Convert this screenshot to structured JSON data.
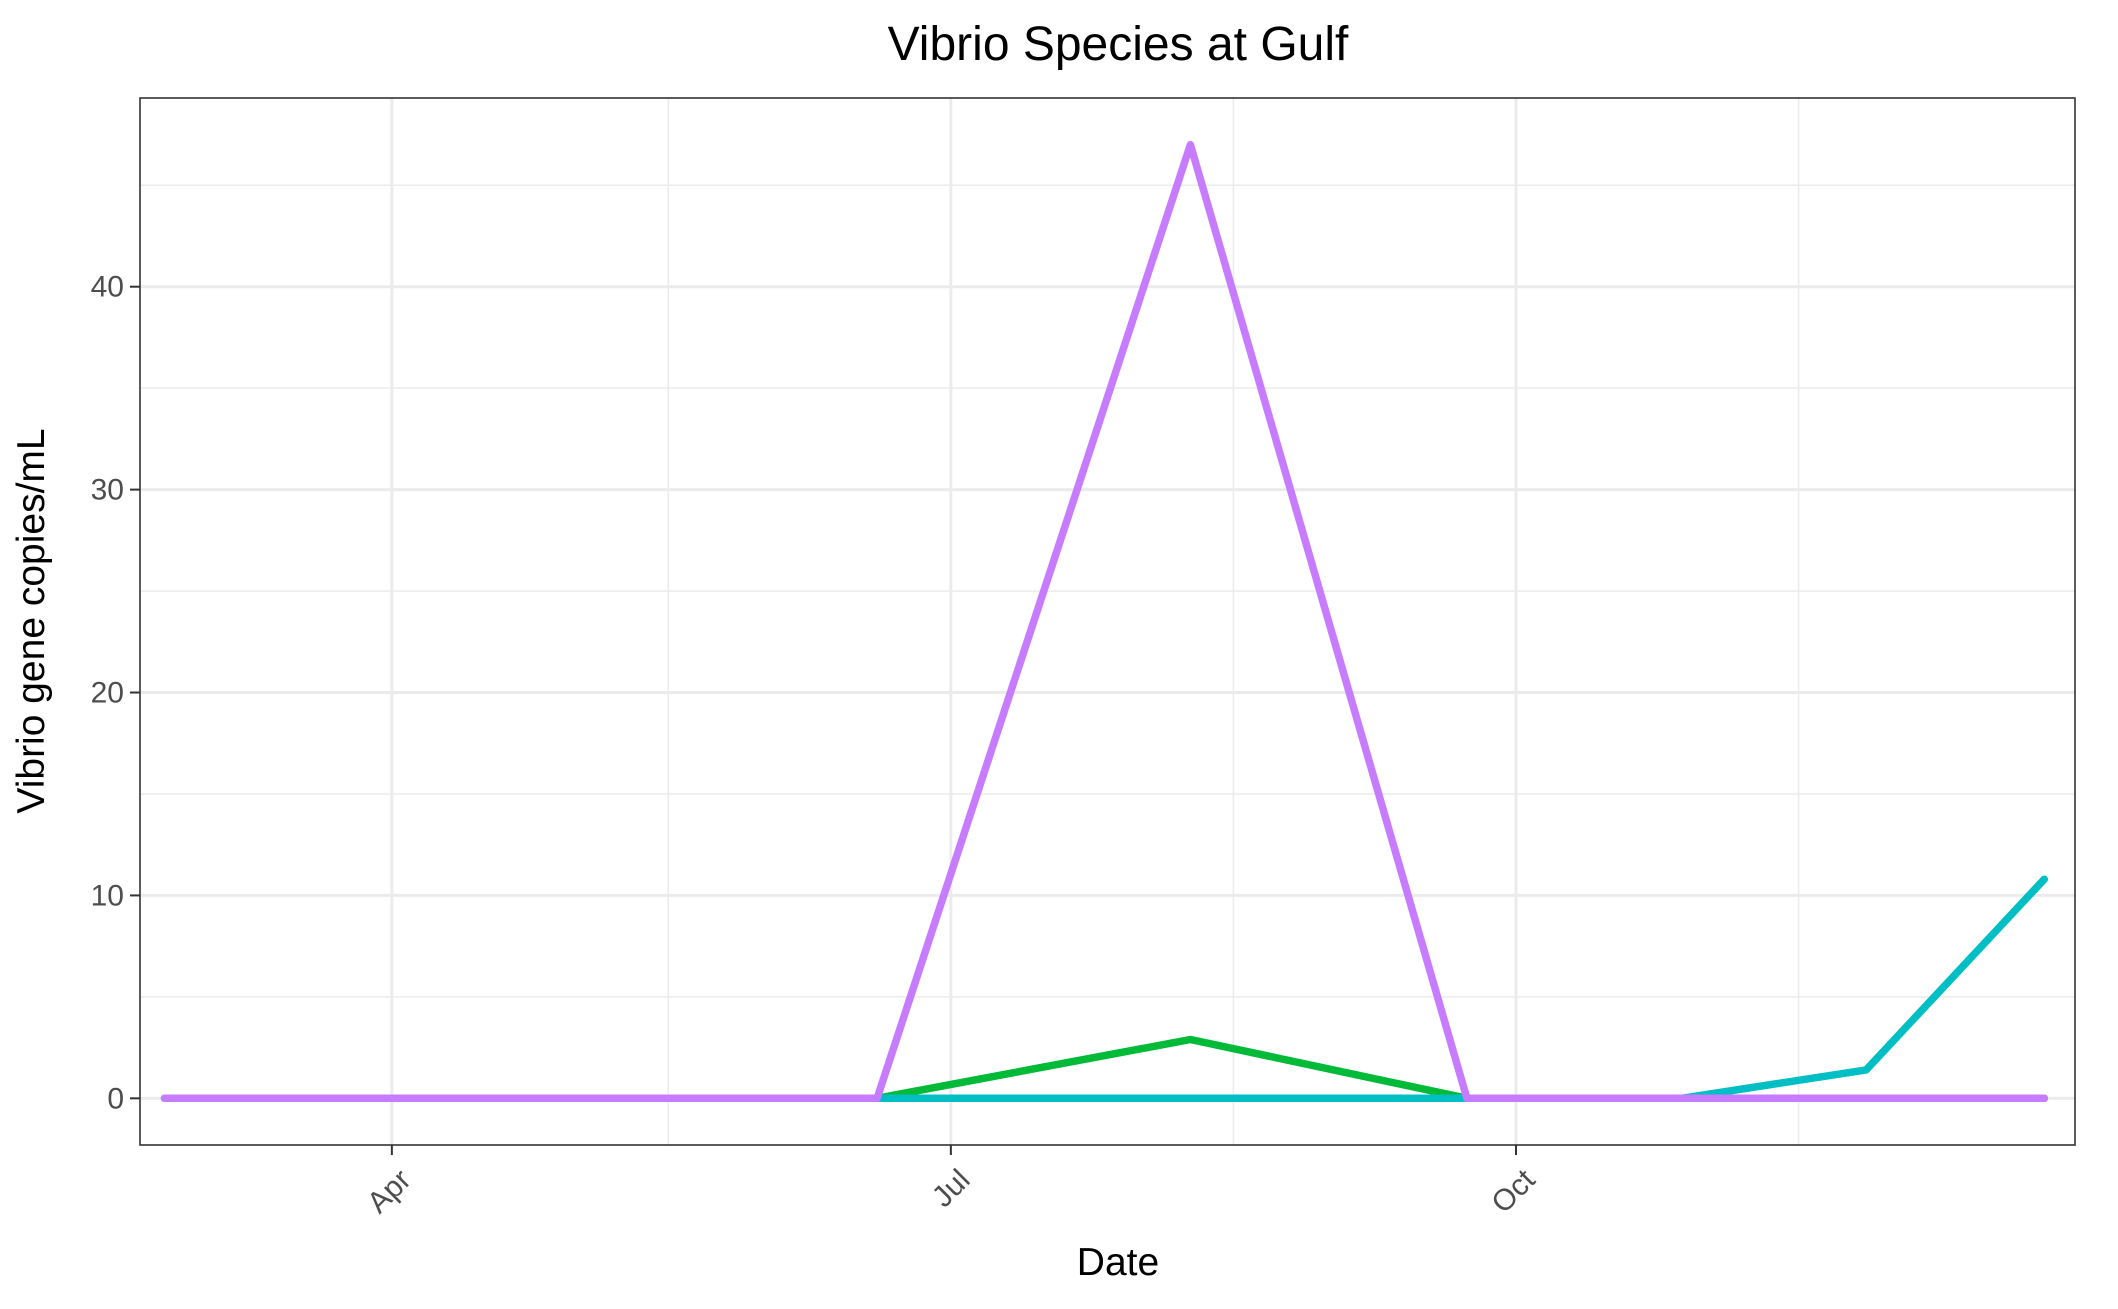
{
  "chart_data": {
    "type": "line",
    "title": "Vibrio Species at Gulf",
    "xlabel": "Date",
    "ylabel": "Vibrio gene copies/mL",
    "x_type": "date",
    "xlim": [
      "2023-02-19",
      "2023-12-31"
    ],
    "ylim": [
      -2.3,
      49.3
    ],
    "x_ticks": [
      {
        "label": "Apr",
        "date": "2023-04-01"
      },
      {
        "label": "Jul",
        "date": "2023-07-01"
      },
      {
        "label": "Oct",
        "date": "2023-10-01"
      }
    ],
    "x_minor_dates": [
      "2023-02-15",
      "2023-05-16",
      "2023-08-16",
      "2023-11-16"
    ],
    "y_ticks": [
      0,
      10,
      20,
      30,
      40
    ],
    "y_minor": [
      5,
      15,
      25,
      35,
      45
    ],
    "grid": true,
    "legend": "none",
    "series": [
      {
        "color": "#00BA38",
        "points": [
          {
            "x": "2023-02-23",
            "y": 0
          },
          {
            "x": "2023-06-19",
            "y": 0
          },
          {
            "x": "2023-08-09",
            "y": 2.9
          },
          {
            "x": "2023-09-23",
            "y": 0
          },
          {
            "x": "2023-12-26",
            "y": 0
          }
        ]
      },
      {
        "color": "#00BFC4",
        "points": [
          {
            "x": "2023-02-23",
            "y": 0
          },
          {
            "x": "2023-06-19",
            "y": 0
          },
          {
            "x": "2023-09-23",
            "y": 0
          },
          {
            "x": "2023-10-28",
            "y": 0
          },
          {
            "x": "2023-11-27",
            "y": 1.4
          },
          {
            "x": "2023-12-26",
            "y": 10.8
          }
        ]
      },
      {
        "color": "#C77CFF",
        "points": [
          {
            "x": "2023-02-23",
            "y": 0
          },
          {
            "x": "2023-06-19",
            "y": 0
          },
          {
            "x": "2023-08-09",
            "y": 47
          },
          {
            "x": "2023-09-23",
            "y": 0
          },
          {
            "x": "2023-12-26",
            "y": 0
          }
        ]
      }
    ]
  }
}
